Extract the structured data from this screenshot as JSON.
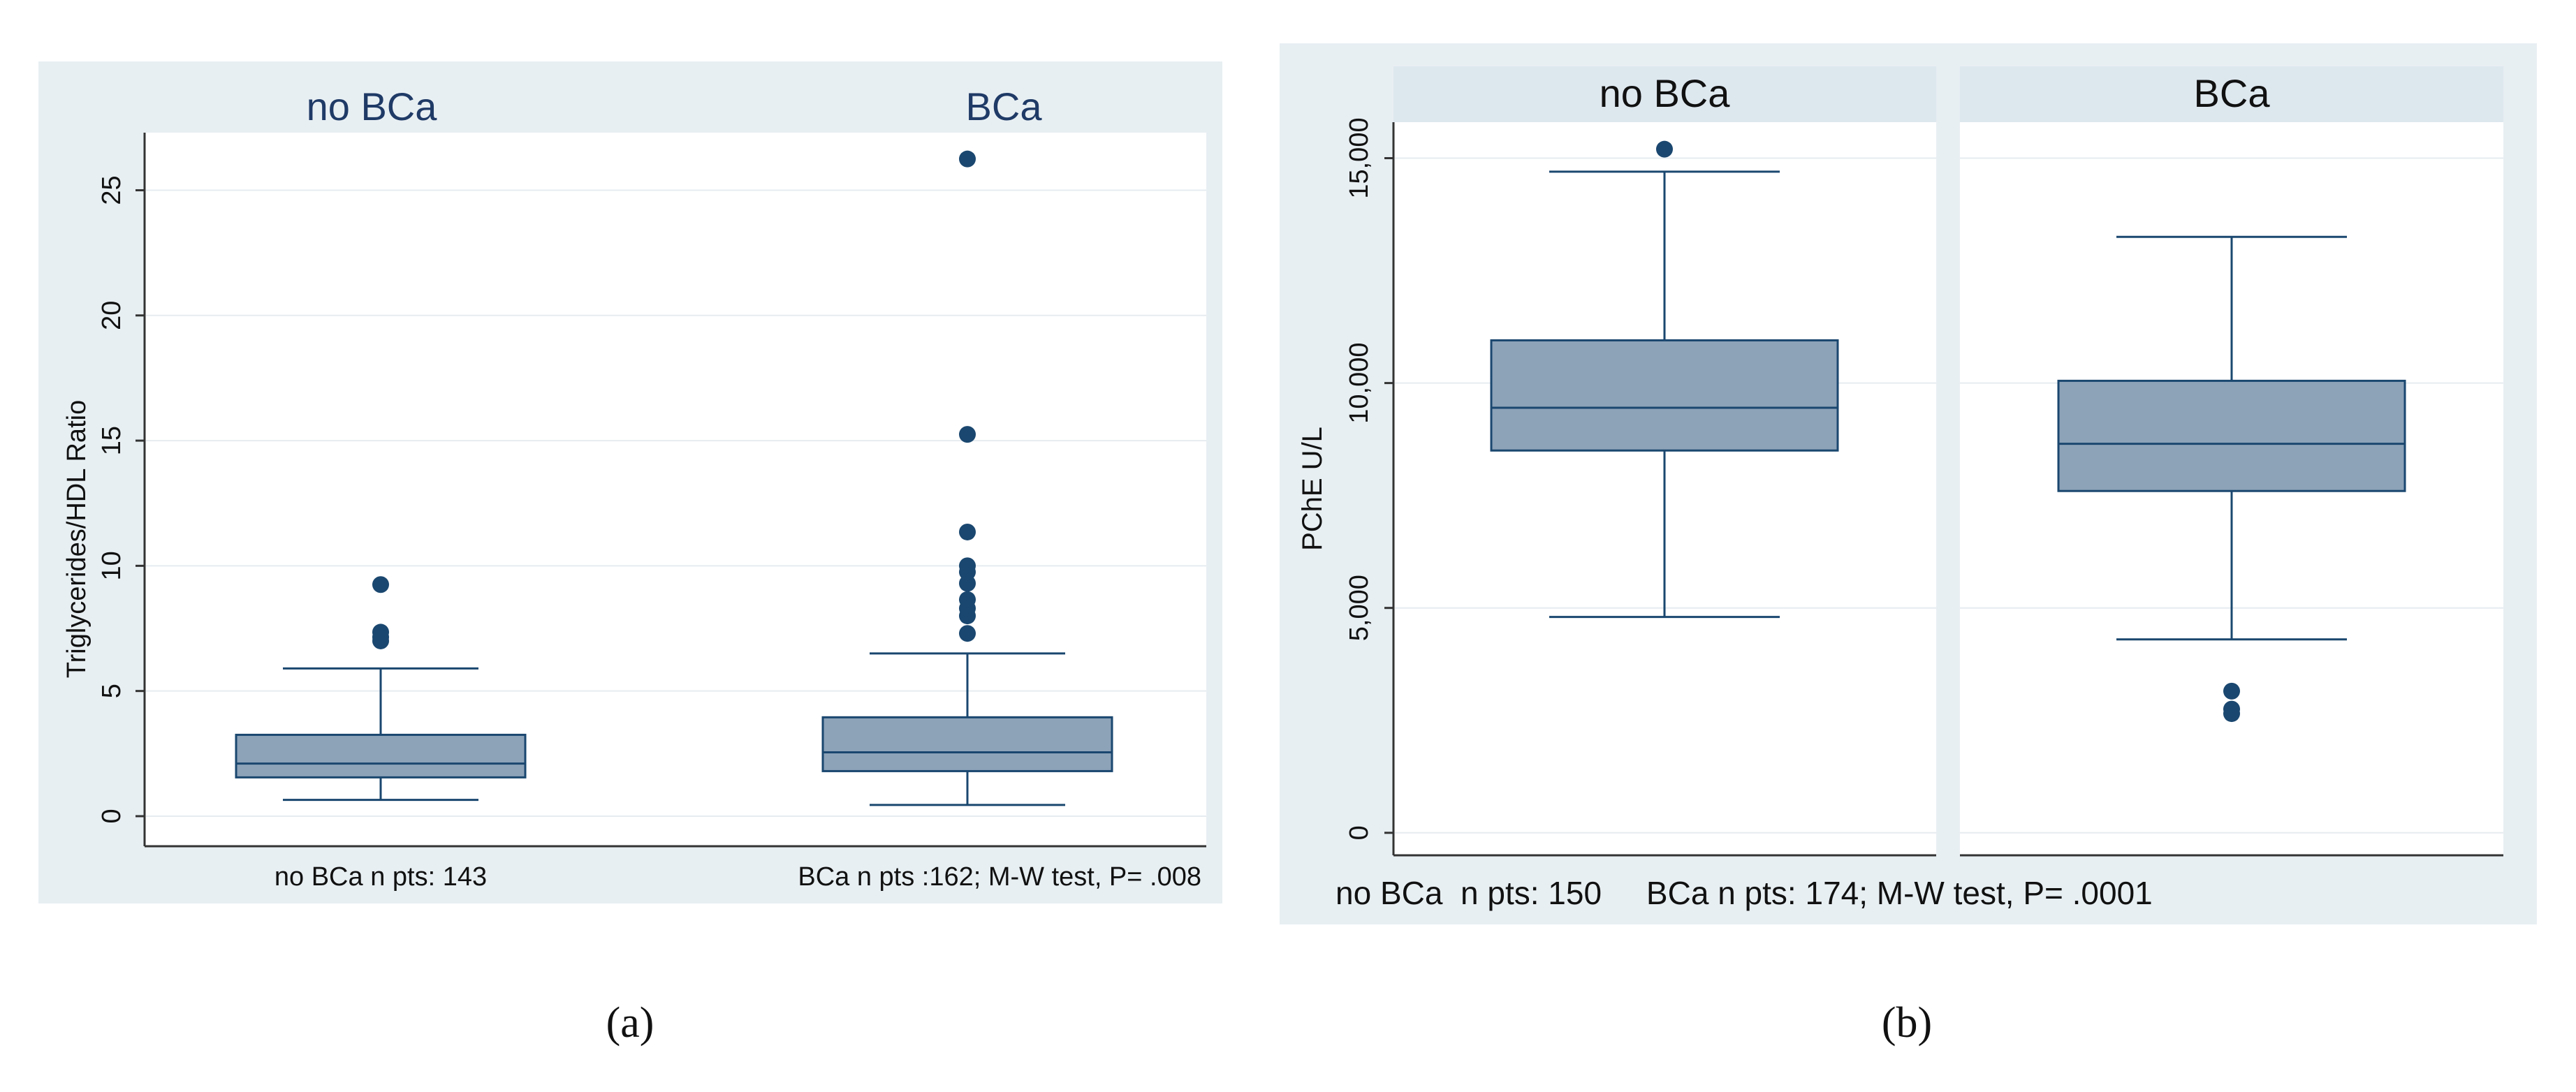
{
  "colors": {
    "panel_bg": "#e8eff3",
    "plot_bg": "#ffffff",
    "header_bg": "#dde7ee",
    "box_fill": "#8da3b8",
    "box_stroke": "#1a476f",
    "outlier": "#1a476f",
    "axis": "#333333",
    "grid": "#e6ecf0",
    "title_a": "#1f3a66",
    "text": "#111111"
  },
  "chart_data": [
    {
      "id": "a",
      "type": "box",
      "panel_label": "(a)",
      "ylabel": "Triglycerides/HDL Ratio",
      "ylim": [
        -1.2,
        27.3
      ],
      "yticks": [
        0,
        5,
        10,
        15,
        20,
        25
      ],
      "ytick_labels": [
        "0",
        "5",
        "10",
        "15",
        "20",
        "25"
      ],
      "grid": true,
      "groups": [
        {
          "name": "no BCa",
          "footnote": "no BCa n pts: 143",
          "stats": {
            "whisker_low": 0.65,
            "q1": 1.55,
            "median": 2.1,
            "q3": 3.25,
            "whisker_high": 5.9
          },
          "outliers": [
            7.0,
            7.15,
            7.35,
            9.25
          ]
        },
        {
          "name": "BCa",
          "footnote": "BCa n pts :162; M-W test, P= .008",
          "stats": {
            "whisker_low": 0.45,
            "q1": 1.8,
            "median": 2.55,
            "q3": 3.95,
            "whisker_high": 6.5
          },
          "outliers": [
            7.3,
            8.0,
            8.3,
            8.65,
            9.3,
            9.75,
            10.0,
            11.35,
            15.25,
            26.25
          ]
        }
      ]
    },
    {
      "id": "b",
      "type": "box",
      "panel_label": "(b)",
      "ylabel": "PChE  U/L",
      "ylim": [
        -500,
        15800
      ],
      "yticks": [
        0,
        5000,
        10000,
        15000
      ],
      "ytick_labels": [
        "0",
        "5,000",
        "10,000",
        "15,000"
      ],
      "grid": true,
      "footnote": "no BCa  n pts: 150     BCa n pts: 174; M-W test, P= .0001",
      "groups": [
        {
          "name": "no BCa",
          "stats": {
            "whisker_low": 4800,
            "q1": 8500,
            "median": 9450,
            "q3": 10950,
            "whisker_high": 14700
          },
          "outliers": [
            15200
          ]
        },
        {
          "name": "BCa",
          "stats": {
            "whisker_low": 4300,
            "q1": 7600,
            "median": 8650,
            "q3": 10050,
            "whisker_high": 13250
          },
          "outliers": [
            2650,
            2750,
            3150
          ]
        }
      ]
    }
  ]
}
